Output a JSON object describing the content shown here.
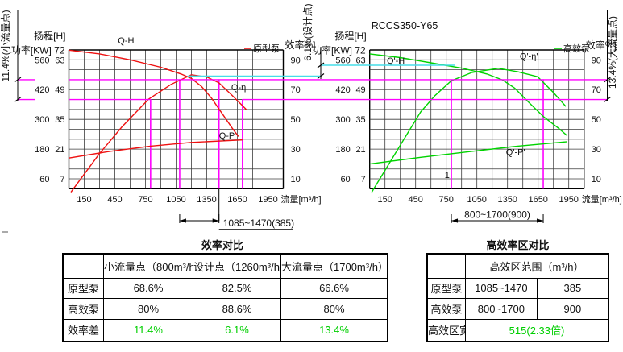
{
  "figure": {
    "background": "#ffffff"
  },
  "annotations": {
    "small_flow_dim": "11.4%(小流量点)",
    "design_dim": "6.1%(设计点)",
    "large_flow_dim": "13.4%(大流量点)"
  },
  "colors": {
    "prototype": "#ee1111",
    "high_eff": "#00d300",
    "marker": "#ff00ff",
    "design_line": "#45dde8",
    "highlight_text": "#00cf00",
    "grid": "#3c3c3c"
  },
  "chart_data": [
    {
      "type": "line",
      "id": "prototype-pump-chart",
      "title": "",
      "legend_label": "原型泵",
      "color": "#ee1111",
      "y_scale": "efficiency_percent_drawn",
      "ylim": [
        0,
        96
      ],
      "xlim": [
        0,
        2100
      ],
      "axes": {
        "head_axis_title": "扬程[H]",
        "power_axis_title": "功率[KW] 72",
        "left_tick_pairs": [
          [
            "560",
            "63"
          ],
          [
            "420",
            "49"
          ],
          [
            "300",
            "35"
          ],
          [
            "180",
            "21"
          ],
          [
            "60",
            "7"
          ]
        ],
        "eff_axis_title": "效率%]",
        "eff_ticks": [
          "90",
          "70",
          "50",
          "30",
          "10"
        ],
        "x_ticks": [
          "150",
          "450",
          "750",
          "1050",
          "1350",
          "1650",
          "1950"
        ],
        "x_axis_title": "流量[m³/h]"
      },
      "series": [
        {
          "name": "Q-H",
          "label_pos": [
            480,
            101
          ],
          "points": [
            [
              0,
              96.5
            ],
            [
              300,
              94
            ],
            [
              600,
              90
            ],
            [
              900,
              85
            ],
            [
              1100,
              80.5
            ],
            [
              1200,
              77.5
            ],
            [
              1300,
              72
            ],
            [
              1400,
              64
            ],
            [
              1500,
              54
            ],
            [
              1600,
              44
            ],
            [
              1660,
              38.5
            ]
          ]
        },
        {
          "name": "Q-η",
          "label_pos": [
            1590,
            69.5
          ],
          "points": [
            [
              20,
              1
            ],
            [
              300,
              27
            ],
            [
              520,
              45
            ],
            [
              780,
              63.5
            ],
            [
              1000,
              73.5
            ],
            [
              1200,
              80
            ],
            [
              1350,
              78.5
            ],
            [
              1470,
              74.5
            ],
            [
              1600,
              66
            ],
            [
              1740,
              56.5
            ]
          ]
        },
        {
          "name": "Q-P",
          "label_pos": [
            1470,
            37
          ],
          "points": [
            [
              0,
              24
            ],
            [
              400,
              28.5
            ],
            [
              800,
              32
            ],
            [
              1200,
              34.5
            ],
            [
              1700,
              36.2
            ]
          ]
        }
      ],
      "flow_markers": [
        {
          "q": 800,
          "to_eff": 63.5
        },
        {
          "q": 1085,
          "to_eff": 77
        },
        {
          "q": 1470,
          "to_eff": 77
        },
        {
          "q": 1700,
          "to_eff": 63.5
        }
      ],
      "range_dim": {
        "from": 1085,
        "to": 1470,
        "label": "1085~1470(385)",
        "style": "text-right"
      },
      "notes": []
    },
    {
      "type": "line",
      "id": "high-eff-pump-chart",
      "title": "RCCS350-Y65",
      "legend_label": "高效泵",
      "color": "#00d300",
      "y_scale": "efficiency_percent_drawn",
      "ylim": [
        0,
        96
      ],
      "xlim": [
        0,
        2100
      ],
      "axes": {
        "head_axis_title": "扬程[H]",
        "power_axis_title": "功率[KW] 72",
        "left_tick_pairs": [
          [
            "560",
            "63"
          ],
          [
            "420",
            "49"
          ],
          [
            "300",
            "35"
          ],
          [
            "180",
            "21"
          ],
          [
            "60",
            "7"
          ]
        ],
        "eff_axis_title": "效率%]",
        "eff_ticks": [
          "90",
          "70",
          "50",
          "30",
          "10"
        ],
        "x_ticks": [
          "150",
          "450",
          "750",
          "1050",
          "1350",
          "1650",
          "1950"
        ],
        "x_axis_title": "流量[m³/h]"
      },
      "series": [
        {
          "name": "Q'-H",
          "label_pos": [
            168,
            87.5
          ],
          "points": [
            [
              0,
              94
            ],
            [
              300,
              91.5
            ],
            [
              600,
              88
            ],
            [
              900,
              84.5
            ],
            [
              1150,
              80.5
            ],
            [
              1300,
              76.5
            ],
            [
              1420,
              71
            ],
            [
              1550,
              62
            ],
            [
              1700,
              52
            ],
            [
              1850,
              44
            ],
            [
              1935,
              39
            ]
          ]
        },
        {
          "name": "Q'-η'",
          "label_pos": [
            1470,
            90.5
          ],
          "points": [
            [
              20,
              1
            ],
            [
              330,
              36
            ],
            [
              500,
              55
            ],
            [
              640,
              66
            ],
            [
              800,
              76
            ],
            [
              1000,
              81.5
            ],
            [
              1260,
              84.3
            ],
            [
              1450,
              82
            ],
            [
              1645,
              78.7
            ],
            [
              1800,
              68
            ],
            [
              1921,
              58.7
            ]
          ]
        },
        {
          "name": "Q'-P'",
          "label_pos": [
            1335,
            26
          ],
          "points": [
            [
              0,
              20
            ],
            [
              500,
              24.5
            ],
            [
              1000,
              28.5
            ],
            [
              1450,
              32
            ],
            [
              1935,
              35
            ]
          ]
        }
      ],
      "flow_markers": [
        {
          "q": 800,
          "to_eff": 77
        },
        {
          "q": 1700,
          "to_eff": 77
        }
      ],
      "range_dim": {
        "from": 800,
        "to": 1700,
        "label": "800~1700(900)",
        "style": "text-above"
      },
      "notes": [
        {
          "text": "1",
          "pos": [
            735,
            10.5
          ]
        }
      ]
    }
  ],
  "tables": [
    {
      "title": "效率对比",
      "columns": [
        "",
        "小流量点（800m³/h）",
        "设计点（1260m³/h）",
        "大流量点（1700m³/h）"
      ],
      "rows": [
        {
          "label": "原型泵",
          "values": [
            "68.6%",
            "82.5%",
            "66.6%"
          ],
          "highlight": false
        },
        {
          "label": "高效泵",
          "values": [
            "80%",
            "88.6%",
            "80%"
          ],
          "highlight": false
        },
        {
          "label": "效率差",
          "values": [
            "11.4%",
            "6.1%",
            "13.4%"
          ],
          "highlight": true
        }
      ]
    },
    {
      "title": "高效率区对比",
      "columns": [
        "",
        "高效区范围（m³/h）"
      ],
      "rows": [
        {
          "label": "原型泵",
          "values": [
            "1085~1470",
            "385"
          ],
          "highlight": false
        },
        {
          "label": "高效泵",
          "values": [
            "800~1700",
            "900"
          ],
          "highlight": false
        },
        {
          "label": "高效区宽",
          "values": [
            "515(2.33倍)"
          ],
          "span": true,
          "highlight": true
        }
      ]
    }
  ]
}
